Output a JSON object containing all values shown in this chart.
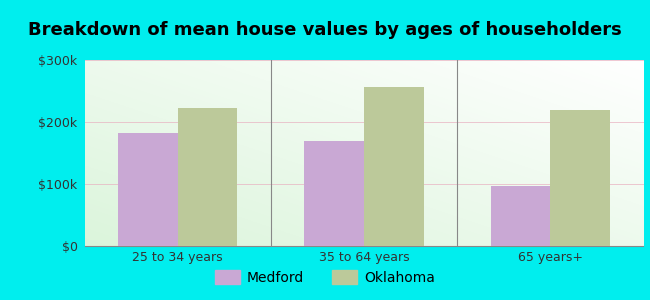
{
  "title": "Breakdown of mean house values by ages of householders",
  "categories": [
    "25 to 34 years",
    "35 to 64 years",
    "65 years+"
  ],
  "medford_values": [
    182000,
    170000,
    97000
  ],
  "oklahoma_values": [
    222000,
    257000,
    220000
  ],
  "bar_color_medford": "#c9a8d4",
  "bar_color_oklahoma": "#bcc99a",
  "ylim": [
    0,
    300000
  ],
  "yticks": [
    0,
    100000,
    200000,
    300000
  ],
  "ytick_labels": [
    "$0",
    "$100k",
    "$200k",
    "$300k"
  ],
  "background_color": "#00eeee",
  "legend_labels": [
    "Medford",
    "Oklahoma"
  ],
  "bar_width": 0.32,
  "title_fontsize": 13,
  "tick_fontsize": 9,
  "legend_fontsize": 10
}
